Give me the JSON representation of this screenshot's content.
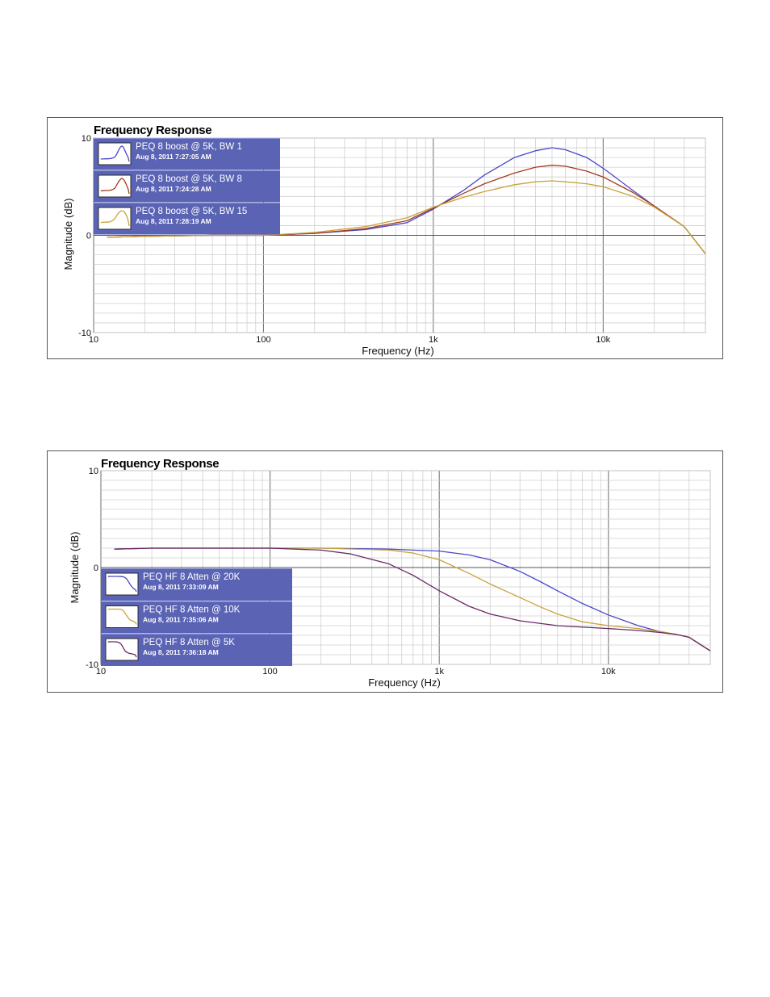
{
  "charts": [
    {
      "chart_data": {
        "type": "line",
        "title": "Frequency Response",
        "xlabel": "Frequency (Hz)",
        "ylabel": "Magnitude (dB)",
        "xscale": "log",
        "xlim": [
          10,
          40000
        ],
        "ylim": [
          -10,
          10
        ],
        "x_ticks": [
          "10",
          "100",
          "1k",
          "10k"
        ],
        "y_ticks": [
          "10",
          "0",
          "-10"
        ],
        "grid": true,
        "legend_position": "top-left",
        "series": [
          {
            "name": "PEQ 8 boost @ 5K, BW 1",
            "date": "Aug 8, 2011 7:27:05 AM",
            "color": "#4a47c8",
            "x": [
              12,
              20,
              50,
              100,
              200,
              400,
              700,
              1000,
              1500,
              2000,
              3000,
              4000,
              5000,
              6000,
              8000,
              10000,
              15000,
              20000,
              30000,
              40000
            ],
            "y": [
              -0.2,
              -0.1,
              0.0,
              0.0,
              0.2,
              0.6,
              1.3,
              2.7,
              4.6,
              6.2,
              8.0,
              8.7,
              9.0,
              8.8,
              8.0,
              6.9,
              4.6,
              3.0,
              0.9,
              -1.9
            ]
          },
          {
            "name": "PEQ 8 boost @ 5K, BW 8",
            "date": "Aug 8, 2011 7:24:28 AM",
            "color": "#a33a1e",
            "x": [
              12,
              20,
              50,
              100,
              200,
              400,
              700,
              1000,
              1500,
              2000,
              3000,
              4000,
              5000,
              6000,
              8000,
              10000,
              15000,
              20000,
              30000,
              40000
            ],
            "y": [
              -0.2,
              -0.1,
              0.0,
              0.0,
              0.2,
              0.7,
              1.5,
              2.8,
              4.3,
              5.3,
              6.4,
              7.0,
              7.2,
              7.1,
              6.6,
              6.0,
              4.4,
              3.0,
              0.9,
              -1.9
            ]
          },
          {
            "name": "PEQ 8 boost @ 5K, BW 15",
            "date": "Aug 8, 2011 7:28:19 AM",
            "color": "#c9a23a",
            "x": [
              12,
              20,
              50,
              100,
              200,
              400,
              700,
              1000,
              1500,
              2000,
              3000,
              4000,
              5000,
              6000,
              8000,
              10000,
              15000,
              20000,
              30000,
              40000
            ],
            "y": [
              -0.2,
              -0.1,
              0.0,
              0.0,
              0.3,
              0.9,
              1.8,
              2.9,
              3.9,
              4.5,
              5.2,
              5.5,
              5.6,
              5.5,
              5.3,
              5.0,
              4.0,
              2.9,
              0.9,
              -1.9
            ]
          }
        ]
      }
    },
    {
      "chart_data": {
        "type": "line",
        "title": "Frequency Response",
        "xlabel": "Frequency (Hz)",
        "ylabel": "Magnitude (dB)",
        "xscale": "log",
        "xlim": [
          10,
          40000
        ],
        "ylim": [
          -10,
          10
        ],
        "x_ticks": [
          "10",
          "100",
          "1k",
          "10k"
        ],
        "y_ticks": [
          "10",
          "0",
          "-10"
        ],
        "grid": true,
        "legend_position": "bottom-left",
        "series": [
          {
            "name": "PEQ HF 8 Atten @ 20K",
            "date": "Aug 8, 2011 7:33:09 AM",
            "color": "#4a47c8",
            "x": [
              12,
              20,
              50,
              100,
              200,
              500,
              1000,
              1500,
              2000,
              3000,
              4000,
              5000,
              7000,
              10000,
              15000,
              20000,
              25000,
              30000,
              40000
            ],
            "y": [
              1.9,
              2.0,
              2.0,
              2.0,
              2.0,
              1.9,
              1.7,
              1.3,
              0.8,
              -0.4,
              -1.5,
              -2.4,
              -3.7,
              -4.9,
              -6.0,
              -6.6,
              -6.9,
              -7.2,
              -8.6
            ]
          },
          {
            "name": "PEQ HF 8 Atten @ 10K",
            "date": "Aug 8, 2011 7:35:06 AM",
            "color": "#c9a23a",
            "x": [
              12,
              20,
              50,
              100,
              200,
              500,
              700,
              1000,
              1500,
              2000,
              3000,
              4000,
              5000,
              7000,
              10000,
              15000,
              20000,
              25000,
              30000,
              40000
            ],
            "y": [
              1.9,
              2.0,
              2.0,
              2.0,
              2.0,
              1.8,
              1.5,
              0.8,
              -0.6,
              -1.7,
              -3.1,
              -4.1,
              -4.8,
              -5.6,
              -6.0,
              -6.3,
              -6.6,
              -6.9,
              -7.2,
              -8.6
            ]
          },
          {
            "name": "PEQ HF 8 Atten @ 5K",
            "date": "Aug 8, 2011 7:36:18 AM",
            "color": "#6a2a66",
            "x": [
              12,
              20,
              50,
              100,
              200,
              300,
              500,
              700,
              1000,
              1500,
              2000,
              3000,
              5000,
              10000,
              15000,
              20000,
              25000,
              30000,
              40000
            ],
            "y": [
              1.9,
              2.0,
              2.0,
              2.0,
              1.8,
              1.4,
              0.4,
              -0.8,
              -2.4,
              -4.0,
              -4.8,
              -5.5,
              -6.0,
              -6.3,
              -6.5,
              -6.7,
              -6.9,
              -7.2,
              -8.6
            ]
          }
        ]
      }
    }
  ]
}
